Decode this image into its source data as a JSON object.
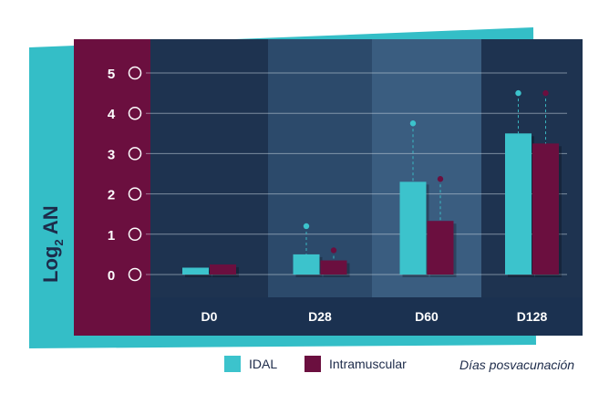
{
  "colors": {
    "teal": "#3cc3cc",
    "maroon": "#6b0f3f",
    "panel_dark": "#1e3350",
    "band_mid": "#2c4a6b",
    "band_light": "#3a5d80",
    "axis_strip": "#6b0f3f",
    "bottom_band": "#1b3150",
    "backdrop": "#34bec7"
  },
  "chart_data": {
    "type": "bar",
    "ylabel": "Log2 AN",
    "ylabel_main": "Log",
    "ylabel_sub": "2",
    "ylabel_tail": " AN",
    "xlabel": "Días posvacunación",
    "categories": [
      "D0",
      "D28",
      "D60",
      "D128"
    ],
    "ylim": [
      0,
      5
    ],
    "yticks": [
      "0",
      "1",
      "2",
      "3",
      "4",
      "5"
    ],
    "grid": true,
    "legend_position": "bottom",
    "series": [
      {
        "name": "IDAL",
        "color": "#3cc3cc",
        "values": [
          0.17,
          0.5,
          2.3,
          3.5
        ],
        "error_tops": [
          null,
          1.2,
          3.75,
          4.5
        ]
      },
      {
        "name": "Intramuscular",
        "color": "#6b0f3f",
        "values": [
          0.25,
          0.35,
          1.33,
          3.25
        ],
        "error_tops": [
          null,
          0.6,
          2.37,
          4.5
        ]
      }
    ]
  }
}
